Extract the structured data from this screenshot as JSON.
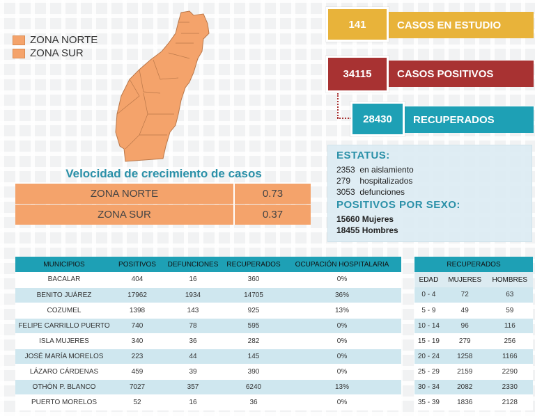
{
  "legend": [
    {
      "label": "ZONA NORTE",
      "color": "#f4a36b"
    },
    {
      "label": "ZONA SUR",
      "color": "#f4a36b"
    }
  ],
  "growth": {
    "title": "Velocidad de crecimiento de casos",
    "rows": [
      {
        "zone": "ZONA NORTE",
        "value": "0.73"
      },
      {
        "zone": "ZONA SUR",
        "value": "0.37"
      }
    ]
  },
  "cases": {
    "estudio": {
      "value": "141",
      "label": "CASOS EN ESTUDIO",
      "color": "#e8b33a"
    },
    "positivos": {
      "value": "34115",
      "label": "CASOS POSITIVOS",
      "color": "#a83232"
    },
    "recuperados": {
      "value": "28430",
      "label": "RECUPERADOS",
      "color": "#1ea0b5"
    }
  },
  "status": {
    "title": "ESTATUS:",
    "lines": [
      {
        "num": "2353",
        "text": "en aislamiento"
      },
      {
        "num": "279",
        "text": "hospitalizados"
      },
      {
        "num": "3053",
        "text": "defunciones"
      }
    ],
    "sex_title": "POSITIVOS POR SEXO:",
    "sex_lines": [
      "15660 Mujeres",
      "18455 Hombres"
    ]
  },
  "municipios": {
    "headers": [
      "MUNICIPIOS",
      "POSITIVOS",
      "DEFUNCIONES",
      "RECUPERADOS",
      "OCUPACIÓN HOSPITALARIA"
    ],
    "rows": [
      [
        "BACALAR",
        "404",
        "16",
        "360",
        "0%"
      ],
      [
        "BENITO JUÁREZ",
        "17962",
        "1934",
        "14705",
        "36%"
      ],
      [
        "COZUMEL",
        "1398",
        "143",
        "925",
        "13%"
      ],
      [
        "FELIPE CARRILLO PUERTO",
        "740",
        "78",
        "595",
        "0%"
      ],
      [
        "ISLA MUJERES",
        "340",
        "36",
        "282",
        "0%"
      ],
      [
        "JOSÉ MARÍA MORELOS",
        "223",
        "44",
        "145",
        "0%"
      ],
      [
        "LÁZARO CÁRDENAS",
        "459",
        "39",
        "390",
        "0%"
      ],
      [
        "OTHÓN P. BLANCO",
        "7027",
        "357",
        "6240",
        "13%"
      ],
      [
        "PUERTO MORELOS",
        "52",
        "16",
        "36",
        "0%"
      ]
    ]
  },
  "recuperados_edad": {
    "title": "RECUPERADOS",
    "headers": [
      "EDAD",
      "MUJERES",
      "HOMBRES"
    ],
    "rows": [
      [
        "0 - 4",
        "72",
        "63"
      ],
      [
        "5 - 9",
        "49",
        "59"
      ],
      [
        "10 - 14",
        "96",
        "116"
      ],
      [
        "15 - 19",
        "279",
        "256"
      ],
      [
        "20 - 24",
        "1258",
        "1166"
      ],
      [
        "25 - 29",
        "2159",
        "2290"
      ],
      [
        "30 - 34",
        "2082",
        "2330"
      ],
      [
        "35 - 39",
        "1836",
        "2128"
      ]
    ]
  }
}
